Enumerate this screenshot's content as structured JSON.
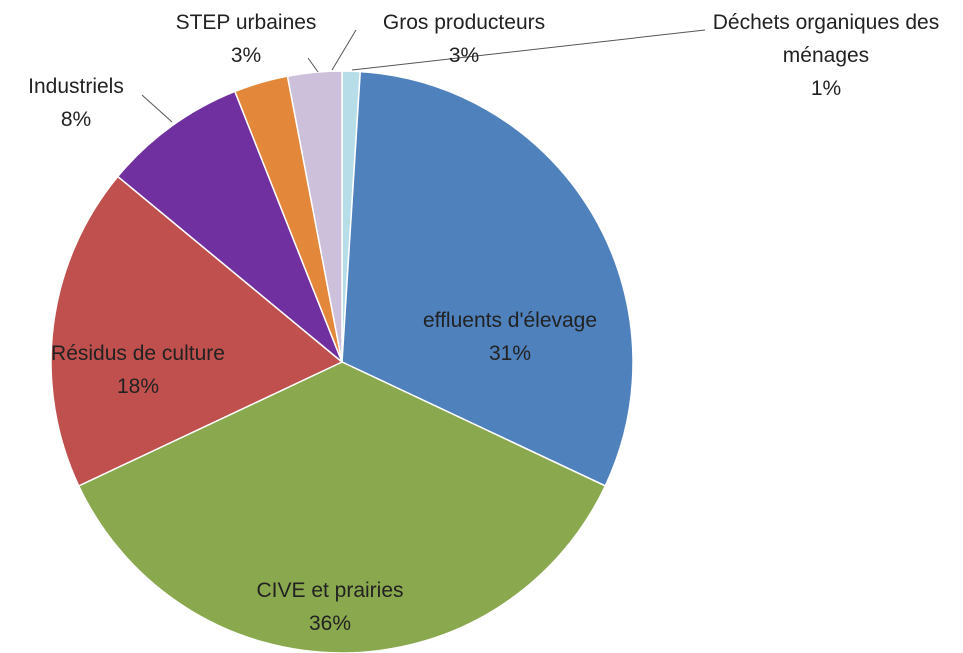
{
  "chart_data": {
    "type": "pie",
    "categories": [
      "Déchets organiques des ménages",
      "effluents d'élevage",
      "CIVE et prairies",
      "Résidus de culture",
      "Industriels",
      "STEP urbaines",
      "Gros producteurs"
    ],
    "values": [
      1,
      31,
      36,
      18,
      8,
      3,
      3
    ],
    "value_labels": [
      "1%",
      "31%",
      "36%",
      "18%",
      "8%",
      "3%",
      "3%"
    ],
    "colors": [
      "#b7dee8",
      "#4f81bd",
      "#8aa84e",
      "#c0504d",
      "#7030a0",
      "#e3873b",
      "#ccc0da"
    ]
  }
}
